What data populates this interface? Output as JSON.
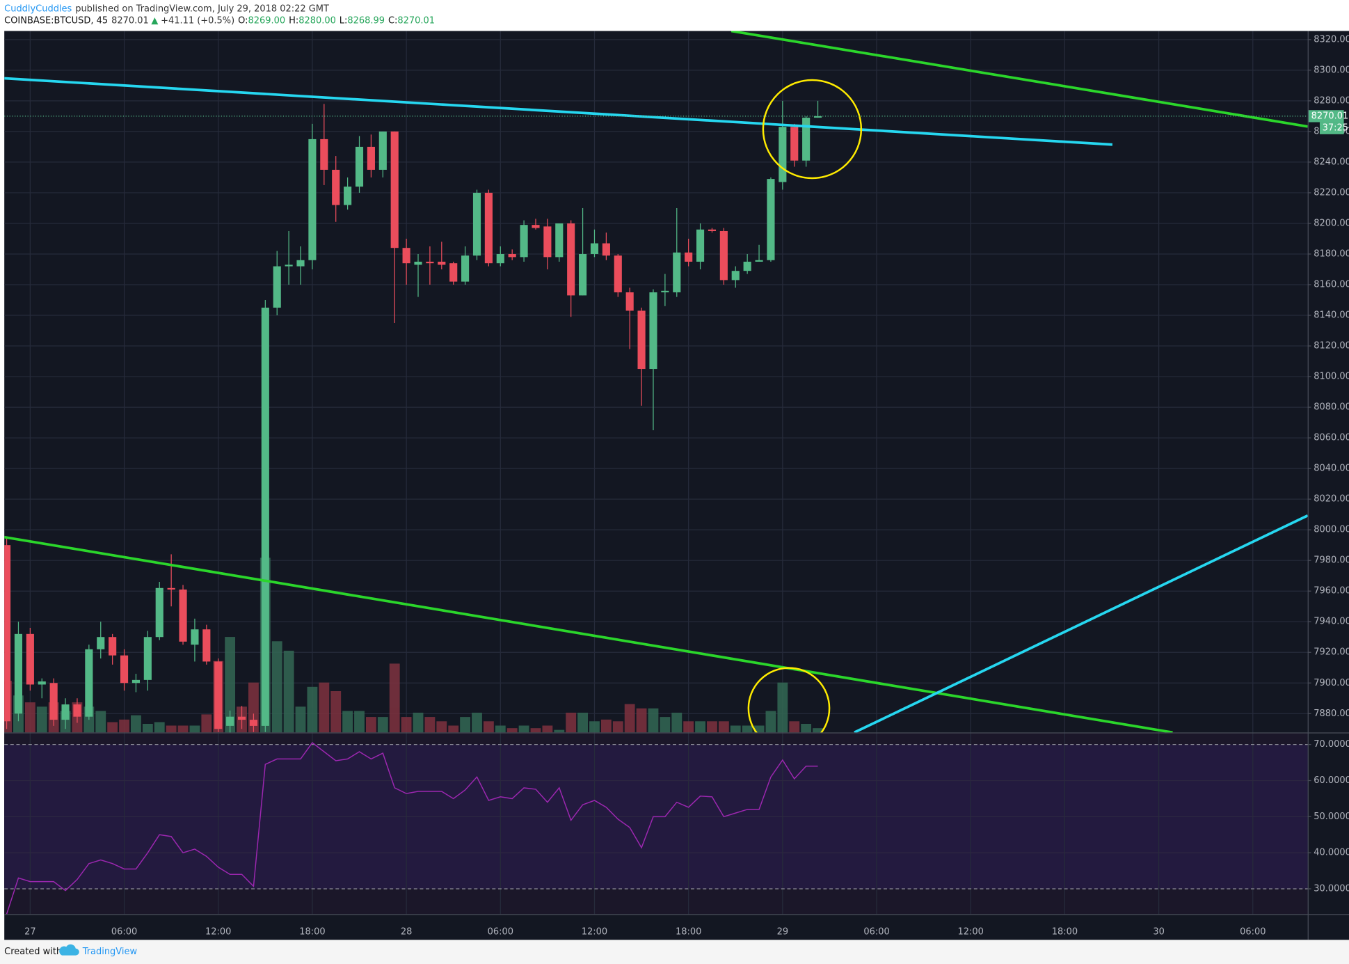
{
  "header": {
    "author": "CuddlyCuddles",
    "published": "published on TradingView.com, July 29, 2018 02:22 GMT",
    "symbol": "COINBASE:BTCUSD, 45",
    "last": "8270.01",
    "arrow": "▲",
    "change": "+41.11 (+0.5%)",
    "o_label": "O:",
    "open": "8269.00",
    "h_label": "H:",
    "high": "8280.00",
    "l_label": "L:",
    "low": "8268.99",
    "c_label": "C:",
    "close": "8270.01"
  },
  "footer": {
    "created_with": "Created with",
    "brand": "TradingView"
  },
  "chart_data": [
    {
      "type": "candlestick",
      "up_color": "#53b987",
      "down_color": "#eb4d5c",
      "grid": true,
      "x": [
        -1.5,
        -0.75,
        0,
        0.75,
        1.5,
        2.25,
        3,
        3.75,
        4.5,
        5.25,
        6,
        6.75,
        7.5,
        8.25,
        9,
        9.75,
        10.5,
        11.25,
        12,
        12.75,
        13.5,
        14.25,
        15,
        15.75,
        16.5,
        17.25,
        18,
        18.75,
        19.5,
        20.25,
        21,
        21.75,
        22.5,
        23.25,
        24,
        24.75,
        25.5,
        26.25,
        27,
        27.75,
        28.5,
        29.25,
        30,
        30.75,
        31.5,
        32.25,
        33,
        33.75,
        34.5,
        35.25,
        36,
        36.75,
        37.5,
        38.25,
        39,
        39.75,
        40.5,
        41.25,
        42,
        42.75,
        43.5,
        44.25,
        45,
        45.75,
        46.5,
        47.25,
        48,
        48.75,
        49.5,
        50.25
      ],
      "open": [
        7990,
        7880,
        7932,
        7899,
        7900,
        7876,
        7886,
        7878,
        7922,
        7930,
        7918,
        7900,
        7902,
        7930,
        7962,
        7961,
        7925,
        7935,
        7914,
        7872,
        7878,
        7876,
        7872,
        8145,
        8172,
        8172,
        8176,
        8255,
        8235,
        8212,
        8224,
        8250,
        8235,
        8260,
        8184,
        8173,
        8175,
        8175,
        8174,
        8162,
        8179,
        8220,
        8174,
        8180,
        8178,
        8199,
        8198,
        8178,
        8200,
        8153,
        8180,
        8187,
        8179,
        8155,
        8143,
        8105,
        8155,
        8155,
        8181,
        8175,
        8196,
        8195,
        8163,
        8169,
        8175,
        8176,
        8227,
        8263,
        8241,
        8269
      ],
      "high": [
        7995,
        7940,
        7936,
        7903,
        7903,
        7890,
        7890,
        7925,
        7940,
        7932,
        7922,
        7906,
        7934,
        7966,
        7984,
        7964,
        7942,
        7938,
        7916,
        7882,
        7885,
        7880,
        8150,
        8182,
        8195,
        8185,
        8265,
        8278,
        8244,
        8230,
        8257,
        8258,
        8260,
        8260,
        8190,
        8180,
        8185,
        8188,
        8175,
        8185,
        8222,
        8222,
        8185,
        8183,
        8202,
        8203,
        8203,
        8200,
        8202,
        8210,
        8196,
        8194,
        8180,
        8158,
        8145,
        8157,
        8167,
        8210,
        8190,
        8200,
        8197,
        8197,
        8172,
        8180,
        8186,
        8230,
        8280,
        8265,
        8270,
        8280
      ],
      "low": [
        7870,
        7875,
        7895,
        7890,
        7872,
        7870,
        7874,
        7876,
        7916,
        7912,
        7895,
        7894,
        7895,
        7928,
        7950,
        7925,
        7914,
        7912,
        7868,
        7866,
        7870,
        7868,
        7868,
        8140,
        8160,
        8160,
        8170,
        8225,
        8201,
        8209,
        8220,
        8230,
        8230,
        8135,
        8160,
        8152,
        8160,
        8170,
        8160,
        8160,
        8176,
        8172,
        8172,
        8176,
        8175,
        8196,
        8170,
        8175,
        8139,
        8153,
        8178,
        8176,
        8152,
        8118,
        8081,
        8065,
        8146,
        8152,
        8172,
        8170,
        8194,
        8160,
        8158,
        8167,
        8175,
        8175,
        8222,
        8237,
        8237,
        8268.99
      ],
      "close": [
        7875,
        7932,
        7899,
        7901,
        7876,
        7886,
        7878,
        7922,
        7930,
        7918,
        7900,
        7902,
        7930,
        7962,
        7961,
        7927,
        7935,
        7914,
        7870,
        7878,
        7876,
        7872,
        8145,
        8172,
        8173,
        8176,
        8255,
        8235,
        8212,
        8224,
        8250,
        8235,
        8260,
        8184,
        8174,
        8175,
        8174,
        8173,
        8162,
        8179,
        8220,
        8174,
        8180,
        8178,
        8199,
        8197,
        8178,
        8200,
        8153,
        8180,
        8187,
        8179,
        8155,
        8143,
        8105,
        8155,
        8156,
        8181,
        8175,
        8196,
        8195,
        8163,
        8169,
        8175,
        8176,
        8229,
        8263,
        8241,
        8269,
        8270.01
      ],
      "last_price": 8270.01,
      "countdown": "37:25",
      "xlim": [
        -1.65,
        81.5
      ],
      "xticks": [
        {
          "value": 0,
          "label": "27"
        },
        {
          "value": 6,
          "label": "06:00"
        },
        {
          "value": 12,
          "label": "12:00"
        },
        {
          "value": 18,
          "label": "18:00"
        },
        {
          "value": 24,
          "label": "28"
        },
        {
          "value": 30,
          "label": "06:00"
        },
        {
          "value": 36,
          "label": "12:00"
        },
        {
          "value": 42,
          "label": "18:00"
        },
        {
          "value": 48,
          "label": "29"
        },
        {
          "value": 54,
          "label": "06:00"
        },
        {
          "value": 60,
          "label": "12:00"
        },
        {
          "value": 66,
          "label": "18:00"
        },
        {
          "value": 72,
          "label": "30"
        },
        {
          "value": 78,
          "label": "06:00"
        }
      ],
      "ylim": [
        7867.7,
        8325.6
      ],
      "yticks": [
        {
          "value": 7880,
          "label": "7880.00"
        },
        {
          "value": 7900,
          "label": "7900.00"
        },
        {
          "value": 7920,
          "label": "7920.00"
        },
        {
          "value": 7940,
          "label": "7940.00"
        },
        {
          "value": 7960,
          "label": "7960.00"
        },
        {
          "value": 7980,
          "label": "7980.00"
        },
        {
          "value": 8000,
          "label": "8000.00"
        },
        {
          "value": 8020,
          "label": "8020.00"
        },
        {
          "value": 8040,
          "label": "8040.00"
        },
        {
          "value": 8060,
          "label": "8060.00"
        },
        {
          "value": 8080,
          "label": "8080.00"
        },
        {
          "value": 8100,
          "label": "8100.00"
        },
        {
          "value": 8120,
          "label": "8120.00"
        },
        {
          "value": 8140,
          "label": "8140.00"
        },
        {
          "value": 8160,
          "label": "8160.00"
        },
        {
          "value": 8180,
          "label": "8180.00"
        },
        {
          "value": 8200,
          "label": "8200.00"
        },
        {
          "value": 8220,
          "label": "8220.00"
        },
        {
          "value": 8240,
          "label": "8240.00"
        },
        {
          "value": 8260,
          "label": "8260.00"
        },
        {
          "value": 8280,
          "label": "8280.00"
        },
        {
          "value": 8300,
          "label": "8300.00"
        },
        {
          "value": 8320,
          "label": "8320.00"
        }
      ]
    },
    {
      "type": "bar",
      "up_color": "#336854",
      "down_color": "#7f323f",
      "values": [
        60,
        43,
        35,
        30,
        35,
        25,
        35,
        30,
        25,
        12,
        15,
        20,
        10,
        12,
        8,
        8,
        8,
        21,
        83,
        111,
        30,
        58,
        203,
        106,
        95,
        30,
        53,
        58,
        48,
        25,
        25,
        18,
        18,
        80,
        18,
        23,
        18,
        13,
        8,
        18,
        23,
        13,
        8,
        5,
        8,
        5,
        8,
        3,
        23,
        23,
        13,
        15,
        13,
        33,
        28,
        28,
        18,
        23,
        13,
        13,
        13,
        13,
        8,
        8,
        8,
        25,
        58,
        13,
        10,
        5
      ]
    },
    {
      "type": "line",
      "color": "#9c27b0",
      "values": [
        23,
        33,
        32,
        32,
        32,
        29.5,
        32.6,
        37,
        38,
        37,
        35.5,
        35.5,
        40,
        45,
        44.5,
        40,
        41,
        39,
        36,
        34,
        34,
        30.7,
        64.5,
        66,
        66,
        66,
        70.5,
        68,
        65.5,
        66,
        68,
        66,
        67.6,
        58,
        56.4,
        57,
        57,
        57,
        55,
        57.4,
        61,
        54.5,
        55.5,
        55,
        58,
        57.6,
        54,
        58,
        49,
        53.3,
        54.5,
        52.6,
        49.3,
        47,
        41.4,
        50,
        50,
        54,
        52.6,
        55.7,
        55.5,
        50,
        51,
        52,
        52,
        61,
        65.7,
        60.5,
        64,
        64
      ],
      "ylim": [
        23,
        73.1
      ],
      "yticks": [
        {
          "value": 30,
          "label": "30.0000"
        },
        {
          "value": 40,
          "label": "40.0000"
        },
        {
          "value": 50,
          "label": "50.0000"
        },
        {
          "value": 60,
          "label": "60.0000"
        },
        {
          "value": 70,
          "label": "70.0000"
        }
      ]
    }
  ]
}
